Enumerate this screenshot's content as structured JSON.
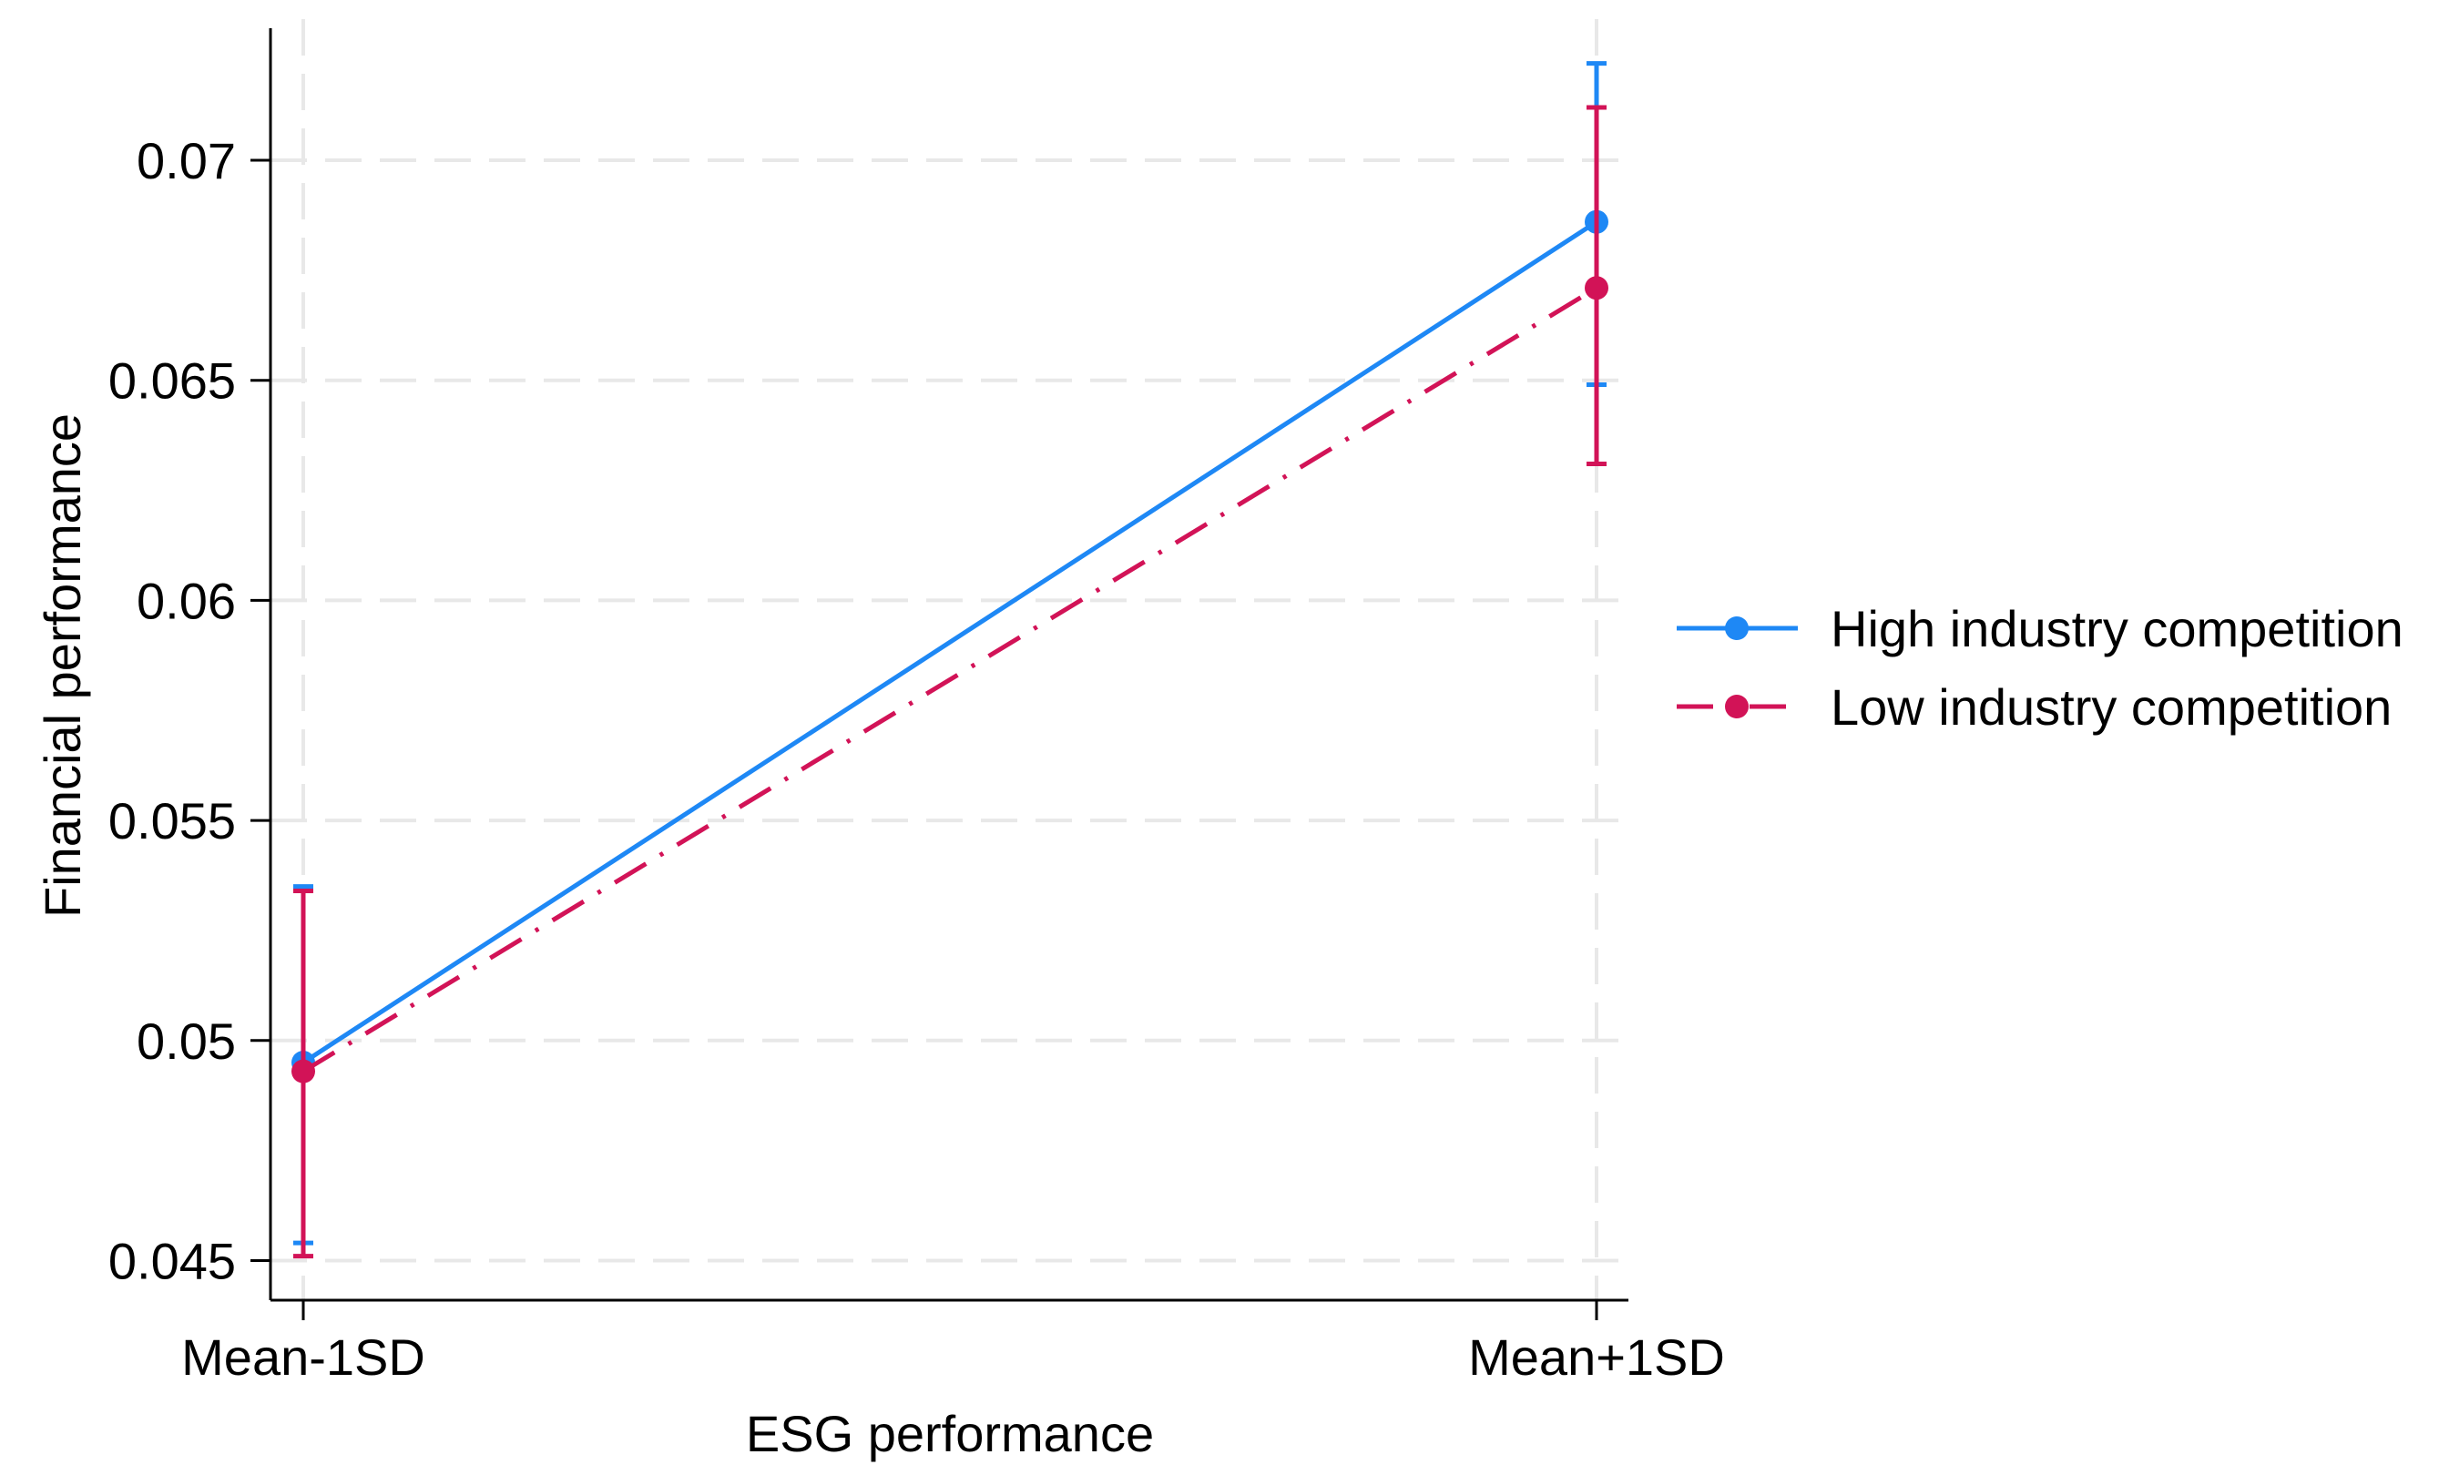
{
  "chart_data": {
    "type": "line",
    "title": "",
    "xlabel": "ESG performance",
    "ylabel": "Financial performance",
    "categories": [
      "Mean-1SD",
      "Mean+1SD"
    ],
    "ylim": [
      0.0441,
      0.073
    ],
    "yticks": [
      0.045,
      0.05,
      0.055,
      0.06,
      0.065,
      0.07
    ],
    "ytick_labels": [
      "0.045",
      "0.05",
      "0.055",
      "0.06",
      "0.065",
      "0.07"
    ],
    "grid": true,
    "legend_position": "right",
    "error_bars": true,
    "series": [
      {
        "name": "High industry competition",
        "color": "#1E88F5",
        "line_style": "solid",
        "values": [
          0.0495,
          0.0686
        ],
        "ci_low": [
          0.0454,
          0.0649
        ],
        "ci_high": [
          0.0535,
          0.0722
        ]
      },
      {
        "name": "Low industry competition",
        "color": "#D21357",
        "line_style": "dash-dot",
        "values": [
          0.0493,
          0.0671
        ],
        "ci_low": [
          0.0451,
          0.0631
        ],
        "ci_high": [
          0.0534,
          0.0712
        ]
      }
    ]
  }
}
